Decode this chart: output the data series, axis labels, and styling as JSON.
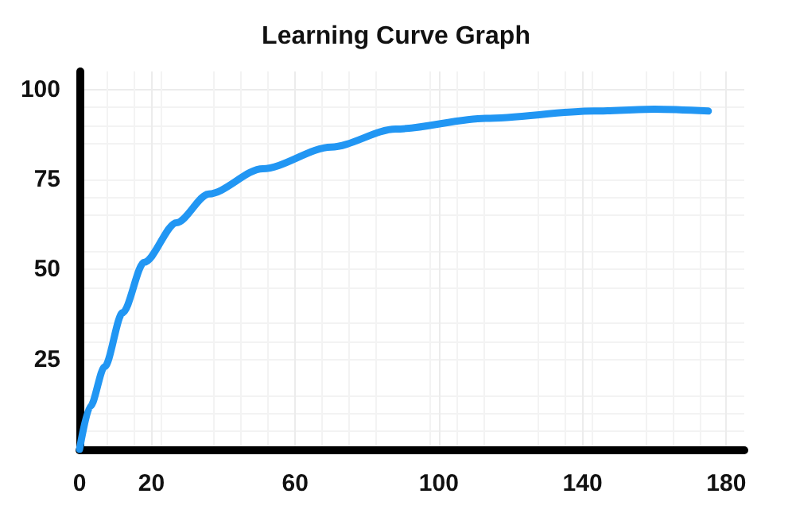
{
  "chart_data": {
    "type": "line",
    "title": "Learning Curve Graph",
    "x": [
      0,
      3,
      7,
      12,
      18,
      27,
      36,
      51,
      70,
      88,
      113,
      143,
      160,
      175
    ],
    "series": [
      {
        "color": "#2196f3",
        "values": [
          0,
          12,
          23,
          38,
          52,
          63,
          71,
          78,
          84,
          89,
          92,
          94,
          94.5,
          94
        ]
      }
    ],
    "xlim": [
      0,
      185
    ],
    "xticks": [
      0,
      20,
      60,
      100,
      140,
      180
    ],
    "ylim": [
      0,
      105
    ],
    "yticks": [
      25,
      50,
      75,
      100
    ],
    "grid": true,
    "marker": "none",
    "line_style": "solid"
  }
}
